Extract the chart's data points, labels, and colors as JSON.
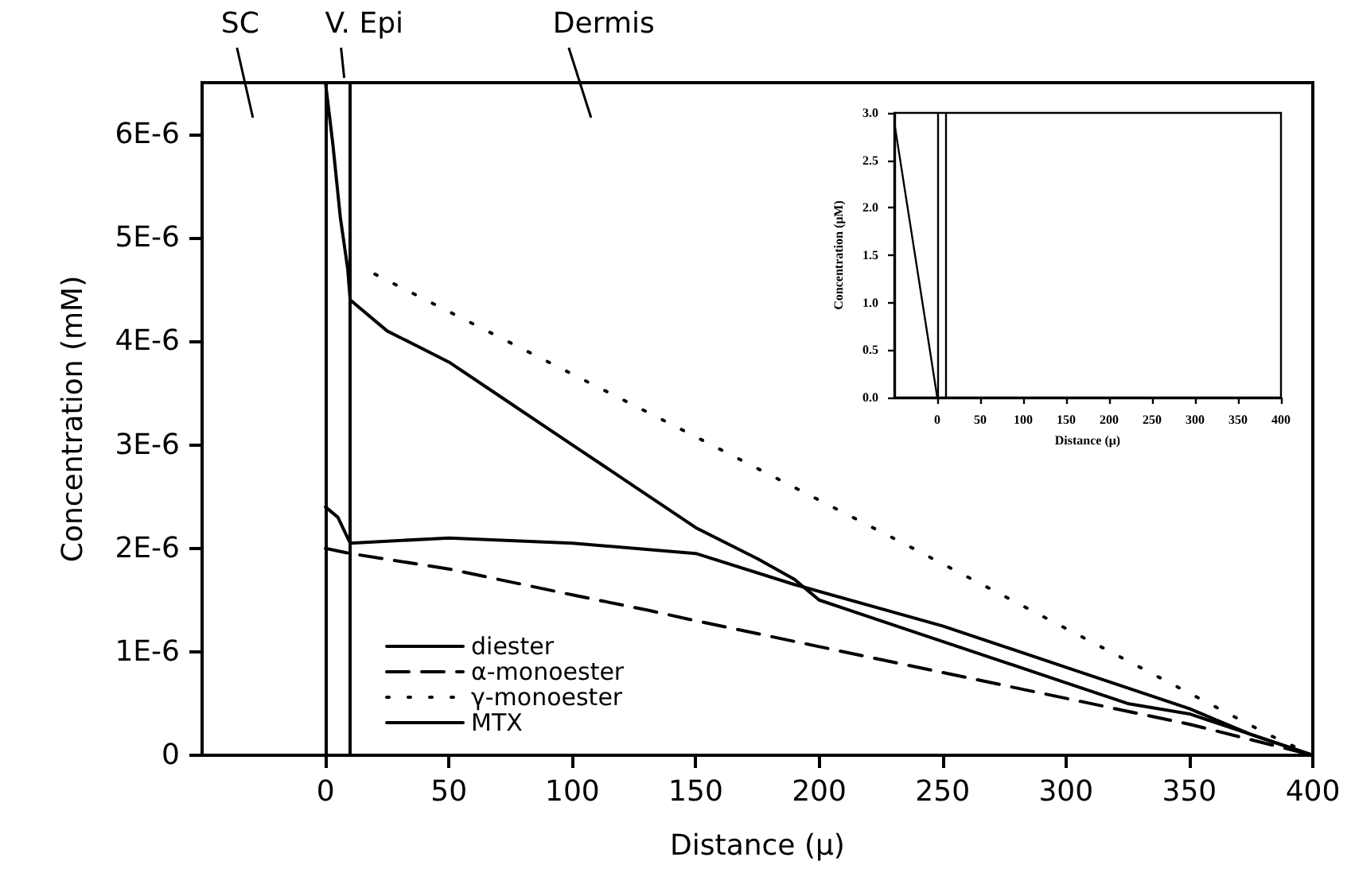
{
  "chart_data": [
    {
      "type": "line",
      "xlabel": "Distance (μ)",
      "ylabel": "Concentration (mM)",
      "xlim": [
        -50,
        400
      ],
      "xticks": [
        0,
        50,
        100,
        150,
        200,
        250,
        300,
        350,
        400
      ],
      "ylim": [
        0,
        6.5e-06
      ],
      "yticks": [
        0,
        {
          "value": 1e-06,
          "label": "1E-6"
        },
        {
          "value": 2e-06,
          "label": "2E-6"
        },
        {
          "value": 3e-06,
          "label": "3E-6"
        },
        {
          "value": 4e-06,
          "label": "4E-6"
        },
        {
          "value": 5e-06,
          "label": "5E-6"
        },
        {
          "value": 6e-06,
          "label": "6E-6"
        }
      ],
      "grid": false,
      "legend": "bottom left",
      "marker": "none",
      "ref_lines": [
        {
          "axis": "x",
          "value": 0,
          "label": null
        },
        {
          "axis": "x",
          "value": 10,
          "label": null
        }
      ],
      "annotations": [
        "SC",
        "V. Epi",
        "Dermis"
      ],
      "series": [
        {
          "name": "diester",
          "color": "#000000",
          "line_style": "solid",
          "x": [
            0,
            3,
            6,
            9,
            10,
            25,
            50,
            75,
            100,
            125,
            150,
            175,
            190,
            200,
            225,
            250,
            275,
            300,
            325,
            350,
            375,
            400
          ],
          "values": [
            6.5e-06,
            5.9e-06,
            5.2e-06,
            4.7e-06,
            4.4e-06,
            4.1e-06,
            3.8e-06,
            3.4e-06,
            3e-06,
            2.6e-06,
            2.2e-06,
            1.9e-06,
            1.7e-06,
            1.5e-06,
            1.3e-06,
            1.1e-06,
            9e-07,
            7e-07,
            5e-07,
            4e-07,
            2e-07,
            0
          ]
        },
        {
          "name": "α-monoester",
          "color": "#000000",
          "line_style": "dashed",
          "x": [
            0,
            10,
            50,
            100,
            131,
            150,
            200,
            250,
            300,
            350,
            375,
            400
          ],
          "values": [
            2e-06,
            1.95e-06,
            1.8e-06,
            1.55e-06,
            1.4e-06,
            1.3e-06,
            1.05e-06,
            8e-07,
            5.5e-07,
            3e-07,
            1.5e-07,
            0
          ]
        },
        {
          "name": "γ-monoester",
          "color": "#000000",
          "line_style": "dotted",
          "x": [
            20,
            140,
            234,
            382,
            400
          ],
          "values": [
            4.65e-06,
            3.2e-06,
            2.05e-06,
            2e-07,
            0
          ]
        },
        {
          "name": "MTX",
          "color": "#000000",
          "line_style": "solid",
          "x": [
            0,
            5,
            10,
            50,
            100,
            150,
            190,
            250,
            300,
            350,
            375,
            400
          ],
          "values": [
            2.4e-06,
            2.3e-06,
            2.05e-06,
            2.1e-06,
            2.05e-06,
            1.95e-06,
            1.65e-06,
            1.25e-06,
            8.5e-07,
            4.5e-07,
            2e-07,
            0
          ]
        }
      ]
    },
    {
      "type": "line",
      "xlabel": "Distance (μ)",
      "ylabel": "Concentration (μM)",
      "xlim": [
        -50,
        400
      ],
      "xticks": [
        0,
        50,
        100,
        150,
        200,
        250,
        300,
        350,
        400
      ],
      "ylim": [
        0,
        3.0
      ],
      "yticks": [
        {
          "value": 0,
          "label": "0.0"
        },
        0.5,
        {
          "value": 1,
          "label": "1.0"
        },
        1.5,
        {
          "value": 2,
          "label": "2.0"
        },
        2.5,
        {
          "value": 3,
          "label": "3.0"
        }
      ],
      "grid": false,
      "marker": "none",
      "ref_lines": [
        {
          "axis": "x",
          "value": 0,
          "label": null
        },
        {
          "axis": "x",
          "value": 10,
          "label": null
        }
      ],
      "series": [
        {
          "color": "#000000",
          "line_style": "solid",
          "x": [
            -50,
            0
          ],
          "values": [
            2.9,
            0
          ]
        }
      ]
    }
  ]
}
